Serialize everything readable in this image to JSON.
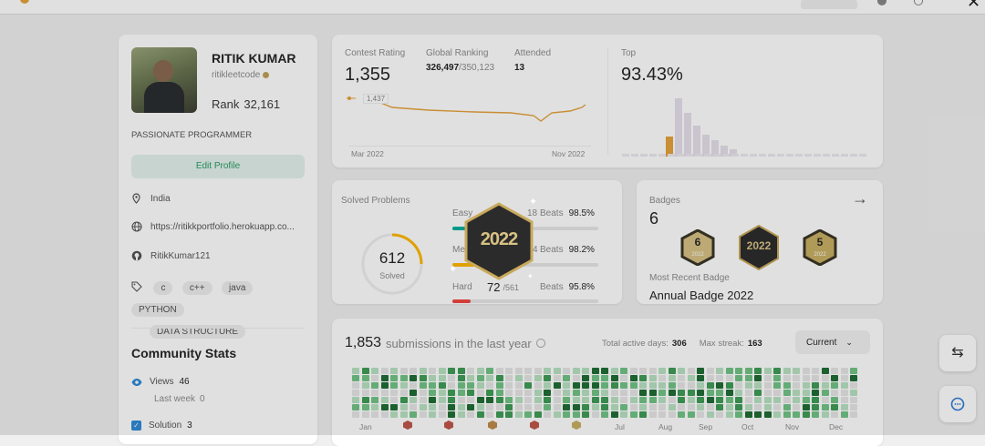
{
  "profile": {
    "name": "RITIK KUMAR",
    "username": "ritikleetcode",
    "rank_label": "Rank",
    "rank_value": "32,161",
    "summary": "PASSIONATE PROGRAMMER",
    "edit_label": "Edit Profile",
    "location": "India",
    "website": "https://ritikkportfolio.herokuapp.co...",
    "github": "RitikKumar121",
    "skills": [
      "c",
      "c++",
      "java",
      "PYTHON",
      "DATA STRUCTURE"
    ]
  },
  "community": {
    "title": "Community Stats",
    "views_label": "Views",
    "views_value": "46",
    "views_sub": "Last week",
    "views_sub_value": "0",
    "solution_label": "Solution",
    "solution_value": "3"
  },
  "contest": {
    "rating_label": "Contest Rating",
    "rating_value": "1,355",
    "global_label": "Global Ranking",
    "global_value": "326,497",
    "global_total": "/350,123",
    "attended_label": "Attended",
    "attended_value": "13",
    "point_label": "1,437",
    "x_start": "Mar 2022",
    "x_end": "Nov 2022",
    "top_label": "Top",
    "top_value": "93.43%"
  },
  "solved": {
    "title": "Solved Problems",
    "count": "612",
    "count_label": "Solved",
    "easy_label": "Easy",
    "easy_frag": "18",
    "easy_beats_label": "Beats",
    "easy_beats": "98.5%",
    "medium_label": "Me",
    "medium_frag": "4",
    "medium_beats_label": "Beats",
    "medium_beats": "98.2%",
    "hard_label": "Hard",
    "hard_value": "72",
    "hard_total": "/561",
    "hard_beats_label": "Beats",
    "hard_beats": "95.8%",
    "colors": {
      "easy": "#00af9b",
      "medium": "#ffb800",
      "hard": "#ef4743"
    }
  },
  "badges": {
    "title": "Badges",
    "count": "6",
    "recent_label": "Most Recent Badge",
    "recent_name": "Annual Badge 2022",
    "badge_a_num": "6",
    "badge_a_year": "2022",
    "badge_b_text": "2022",
    "badge_c_num": "5",
    "badge_c_year": "2022",
    "popup_text": "2022"
  },
  "submissions": {
    "count": "1,853",
    "label": "submissions in the last year",
    "active_label": "Total active days:",
    "active_value": "306",
    "streak_label": "Max streak:",
    "streak_value": "163",
    "dropdown_value": "Current",
    "months": [
      "Jan",
      "Jul",
      "Aug",
      "Sep",
      "Oct",
      "Nov",
      "Dec"
    ]
  }
}
